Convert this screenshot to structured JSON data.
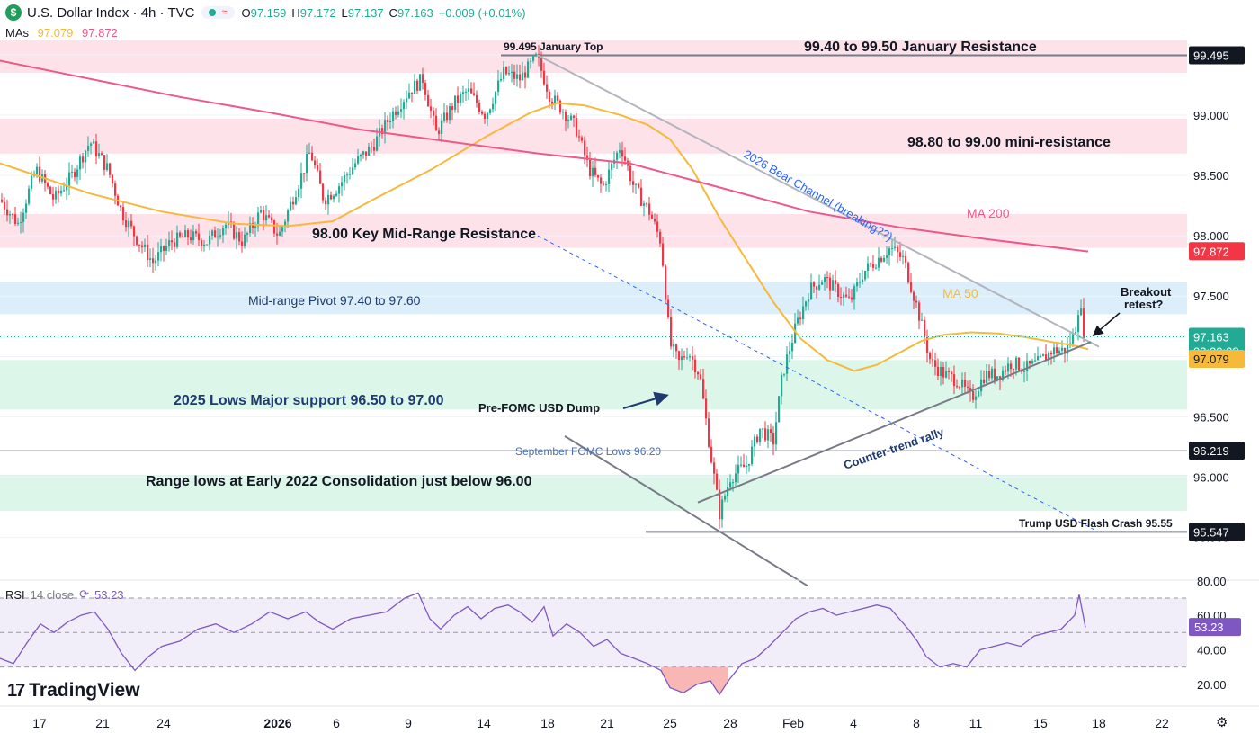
{
  "header": {
    "symbol_initial": "$",
    "title": "U.S. Dollar Index · 4h · TVC",
    "open_label": "O",
    "open": "97.159",
    "high_label": "H",
    "high": "97.172",
    "low_label": "L",
    "low": "97.137",
    "close_label": "C",
    "close": "97.163",
    "change": "+0.009 (+0.01%)"
  },
  "mas_legend": {
    "label": "MAs",
    "ma50": "97.079",
    "ma200": "97.872"
  },
  "rsi_legend": {
    "label": "RSI",
    "params": "14 close",
    "value": "53.23"
  },
  "branding": {
    "logo_mark": "17",
    "logo_text": "TradingView"
  },
  "colors": {
    "ma50": "#f6b93b",
    "ma200": "#f0578a",
    "up": "#22ab94",
    "down": "#f23645",
    "resistance_zone": "#fde2ea",
    "pivot_zone": "#dbeef9",
    "support_zone": "#dcf6ea",
    "rsi": "#7e57c2"
  },
  "chart_data": [
    {
      "type": "candlestick",
      "title": "U.S. Dollar Index · 4h · TVC",
      "y_axis": {
        "range": [
          95.25,
          99.85
        ],
        "ticks": [
          "95.500",
          "96.000",
          "96.500",
          "97.000",
          "97.500",
          "98.000",
          "98.500",
          "99.000",
          "99.500"
        ]
      },
      "x_axis": {
        "ticks": [
          "17",
          "21",
          "24",
          "2026",
          "6",
          "9",
          "14",
          "18",
          "21",
          "25",
          "28",
          "Feb",
          "4",
          "8",
          "11",
          "15",
          "18",
          "22"
        ]
      },
      "price_labels": [
        {
          "value": "99.495",
          "color": "#131722"
        },
        {
          "value": "97.872",
          "color": "#f23645"
        },
        {
          "value": "97.163",
          "countdown": "03:32:28",
          "color": "#22ab94"
        },
        {
          "value": "97.079",
          "color": "#f6b93b"
        },
        {
          "value": "96.219",
          "color": "#131722"
        },
        {
          "value": "95.547",
          "color": "#131722"
        }
      ],
      "zones": [
        {
          "name": "january-resistance",
          "from": 99.35,
          "to": 99.62,
          "kind": "resistance"
        },
        {
          "name": "mini-resistance",
          "from": 98.68,
          "to": 98.97,
          "kind": "resistance"
        },
        {
          "name": "key-mid-range-resistance",
          "from": 97.9,
          "to": 98.18,
          "kind": "resistance"
        },
        {
          "name": "mid-range-pivot",
          "from": 97.35,
          "to": 97.62,
          "kind": "pivot"
        },
        {
          "name": "major-support",
          "from": 96.56,
          "to": 96.97,
          "kind": "support"
        },
        {
          "name": "range-lows",
          "from": 95.72,
          "to": 96.02,
          "kind": "support"
        }
      ],
      "annotations": {
        "jan_top": "99.495 January Top",
        "jan_resistance": "99.40 to 99.50 January Resistance",
        "mini_resistance": "98.80 to 99.00 mini-resistance",
        "key_resistance": "98.00 Key Mid-Range Resistance",
        "pivot": "Mid-range Pivot 97.40 to 97.60",
        "support": "2025 Lows Major support 96.50 to 97.00",
        "pre_fomc": "Pre-FOMC USD Dump",
        "sept_fomc": "September FOMC Lows 96.20",
        "range_lows": "Range lows at Early 2022 Consolidation just below 96.00",
        "flash_crash": "Trump USD Flash Crash 95.55",
        "bear_channel": "2026 Bear Channel (breaking??)",
        "counter_trend": "Counter-trend rally",
        "ma200_label": "MA 200",
        "ma50_label": "MA 50",
        "breakout_1": "Breakout",
        "breakout_2": "retest?"
      },
      "series": [
        {
          "name": "MA 50",
          "values": [
            [
              0,
              98.6
            ],
            [
              40,
              98.5
            ],
            [
              100,
              98.35
            ],
            [
              180,
              98.2
            ],
            [
              260,
              98.1
            ],
            [
              320,
              98.08
            ],
            [
              370,
              98.12
            ],
            [
              420,
              98.32
            ],
            [
              480,
              98.55
            ],
            [
              540,
              98.82
            ],
            [
              590,
              99.02
            ],
            [
              620,
              99.1
            ],
            [
              650,
              99.08
            ],
            [
              690,
              99.0
            ],
            [
              720,
              98.92
            ],
            [
              745,
              98.8
            ],
            [
              770,
              98.55
            ],
            [
              800,
              98.15
            ],
            [
              830,
              97.8
            ],
            [
              860,
              97.45
            ],
            [
              890,
              97.15
            ],
            [
              920,
              96.97
            ],
            [
              950,
              96.88
            ],
            [
              975,
              96.93
            ],
            [
              1000,
              97.03
            ],
            [
              1025,
              97.13
            ],
            [
              1050,
              97.18
            ],
            [
              1080,
              97.2
            ],
            [
              1110,
              97.19
            ],
            [
              1140,
              97.16
            ],
            [
              1170,
              97.12
            ],
            [
              1195,
              97.09
            ],
            [
              1210,
              97.06
            ]
          ]
        },
        {
          "name": "MA 200",
          "values": [
            [
              0,
              99.45
            ],
            [
              100,
              99.3
            ],
            [
              200,
              99.15
            ],
            [
              300,
              99.02
            ],
            [
              400,
              98.88
            ],
            [
              500,
              98.78
            ],
            [
              600,
              98.68
            ],
            [
              700,
              98.6
            ],
            [
              800,
              98.4
            ],
            [
              900,
              98.2
            ],
            [
              1000,
              98.07
            ],
            [
              1100,
              97.97
            ],
            [
              1210,
              97.87
            ]
          ]
        }
      ],
      "candle_data_summary": {
        "start": 98.3,
        "dec_high": 98.78,
        "dec_low": 97.78,
        "jan_high": 99.495,
        "jan_low": 95.547,
        "feb_high": 97.98,
        "feb_low": 96.55,
        "last_close": 97.163
      },
      "trendlines": [
        {
          "name": "bear-channel-upper",
          "from": [
            597,
            99.5
          ],
          "to": [
            1222,
            97.08
          ]
        },
        {
          "name": "bear-channel-lower",
          "from": [
            598,
            98.0
          ],
          "to": [
            1218,
            95.56
          ],
          "style": "dashed"
        },
        {
          "name": "counter-trend-support",
          "from": [
            776,
            95.79
          ],
          "to": [
            1213,
            97.12
          ]
        },
        {
          "name": "flash-crash-fan",
          "from": [
            628,
            96.34
          ],
          "to": [
            898,
            95.1
          ]
        }
      ],
      "horizontal_lines": [
        {
          "name": "january-top",
          "value": 99.495
        },
        {
          "name": "september-fomc-lows",
          "value": 96.219
        },
        {
          "name": "flash-crash",
          "value": 95.547
        }
      ]
    },
    {
      "type": "line",
      "title": "RSI 14 close",
      "y_axis": {
        "ticks": [
          "20.00",
          "40.00",
          "60.00",
          "80.00"
        ],
        "bands": [
          30,
          70
        ]
      },
      "x_axis": {
        "ticks": [
          "17",
          "21",
          "24",
          "2026",
          "6",
          "9",
          "14",
          "18",
          "21",
          "25",
          "28",
          "Feb",
          "4",
          "8",
          "11",
          "15",
          "18",
          "22"
        ]
      },
      "series": [
        {
          "name": "RSI 14 close",
          "values": [
            [
              0,
              35
            ],
            [
              15,
              32
            ],
            [
              30,
              44
            ],
            [
              45,
              55
            ],
            [
              60,
              50
            ],
            [
              75,
              56
            ],
            [
              90,
              60
            ],
            [
              105,
              62
            ],
            [
              120,
              52
            ],
            [
              135,
              38
            ],
            [
              150,
              28
            ],
            [
              165,
              36
            ],
            [
              180,
              42
            ],
            [
              200,
              45
            ],
            [
              220,
              52
            ],
            [
              240,
              55
            ],
            [
              260,
              50
            ],
            [
              280,
              55
            ],
            [
              300,
              62
            ],
            [
              320,
              58
            ],
            [
              340,
              62
            ],
            [
              355,
              56
            ],
            [
              370,
              52
            ],
            [
              390,
              58
            ],
            [
              410,
              60
            ],
            [
              430,
              62
            ],
            [
              450,
              70
            ],
            [
              465,
              73
            ],
            [
              478,
              58
            ],
            [
              490,
              52
            ],
            [
              505,
              60
            ],
            [
              520,
              65
            ],
            [
              535,
              58
            ],
            [
              550,
              64
            ],
            [
              565,
              66
            ],
            [
              578,
              62
            ],
            [
              592,
              56
            ],
            [
              605,
              65
            ],
            [
              615,
              48
            ],
            [
              630,
              55
            ],
            [
              645,
              50
            ],
            [
              660,
              42
            ],
            [
              675,
              46
            ],
            [
              690,
              38
            ],
            [
              705,
              35
            ],
            [
              720,
              32
            ],
            [
              735,
              28
            ],
            [
              745,
              18
            ],
            [
              760,
              15
            ],
            [
              775,
              20
            ],
            [
              790,
              22
            ],
            [
              800,
              14
            ],
            [
              810,
              22
            ],
            [
              825,
              32
            ],
            [
              840,
              35
            ],
            [
              855,
              42
            ],
            [
              870,
              50
            ],
            [
              885,
              58
            ],
            [
              900,
              62
            ],
            [
              915,
              64
            ],
            [
              930,
              60
            ],
            [
              945,
              62
            ],
            [
              960,
              64
            ],
            [
              975,
              66
            ],
            [
              990,
              64
            ],
            [
              1000,
              58
            ],
            [
              1010,
              52
            ],
            [
              1020,
              45
            ],
            [
              1030,
              36
            ],
            [
              1045,
              30
            ],
            [
              1060,
              32
            ],
            [
              1075,
              30
            ],
            [
              1090,
              40
            ],
            [
              1105,
              42
            ],
            [
              1120,
              44
            ],
            [
              1135,
              42
            ],
            [
              1150,
              48
            ],
            [
              1165,
              50
            ],
            [
              1180,
              52
            ],
            [
              1195,
              60
            ],
            [
              1200,
              72
            ],
            [
              1207,
              53
            ]
          ]
        }
      ]
    }
  ]
}
